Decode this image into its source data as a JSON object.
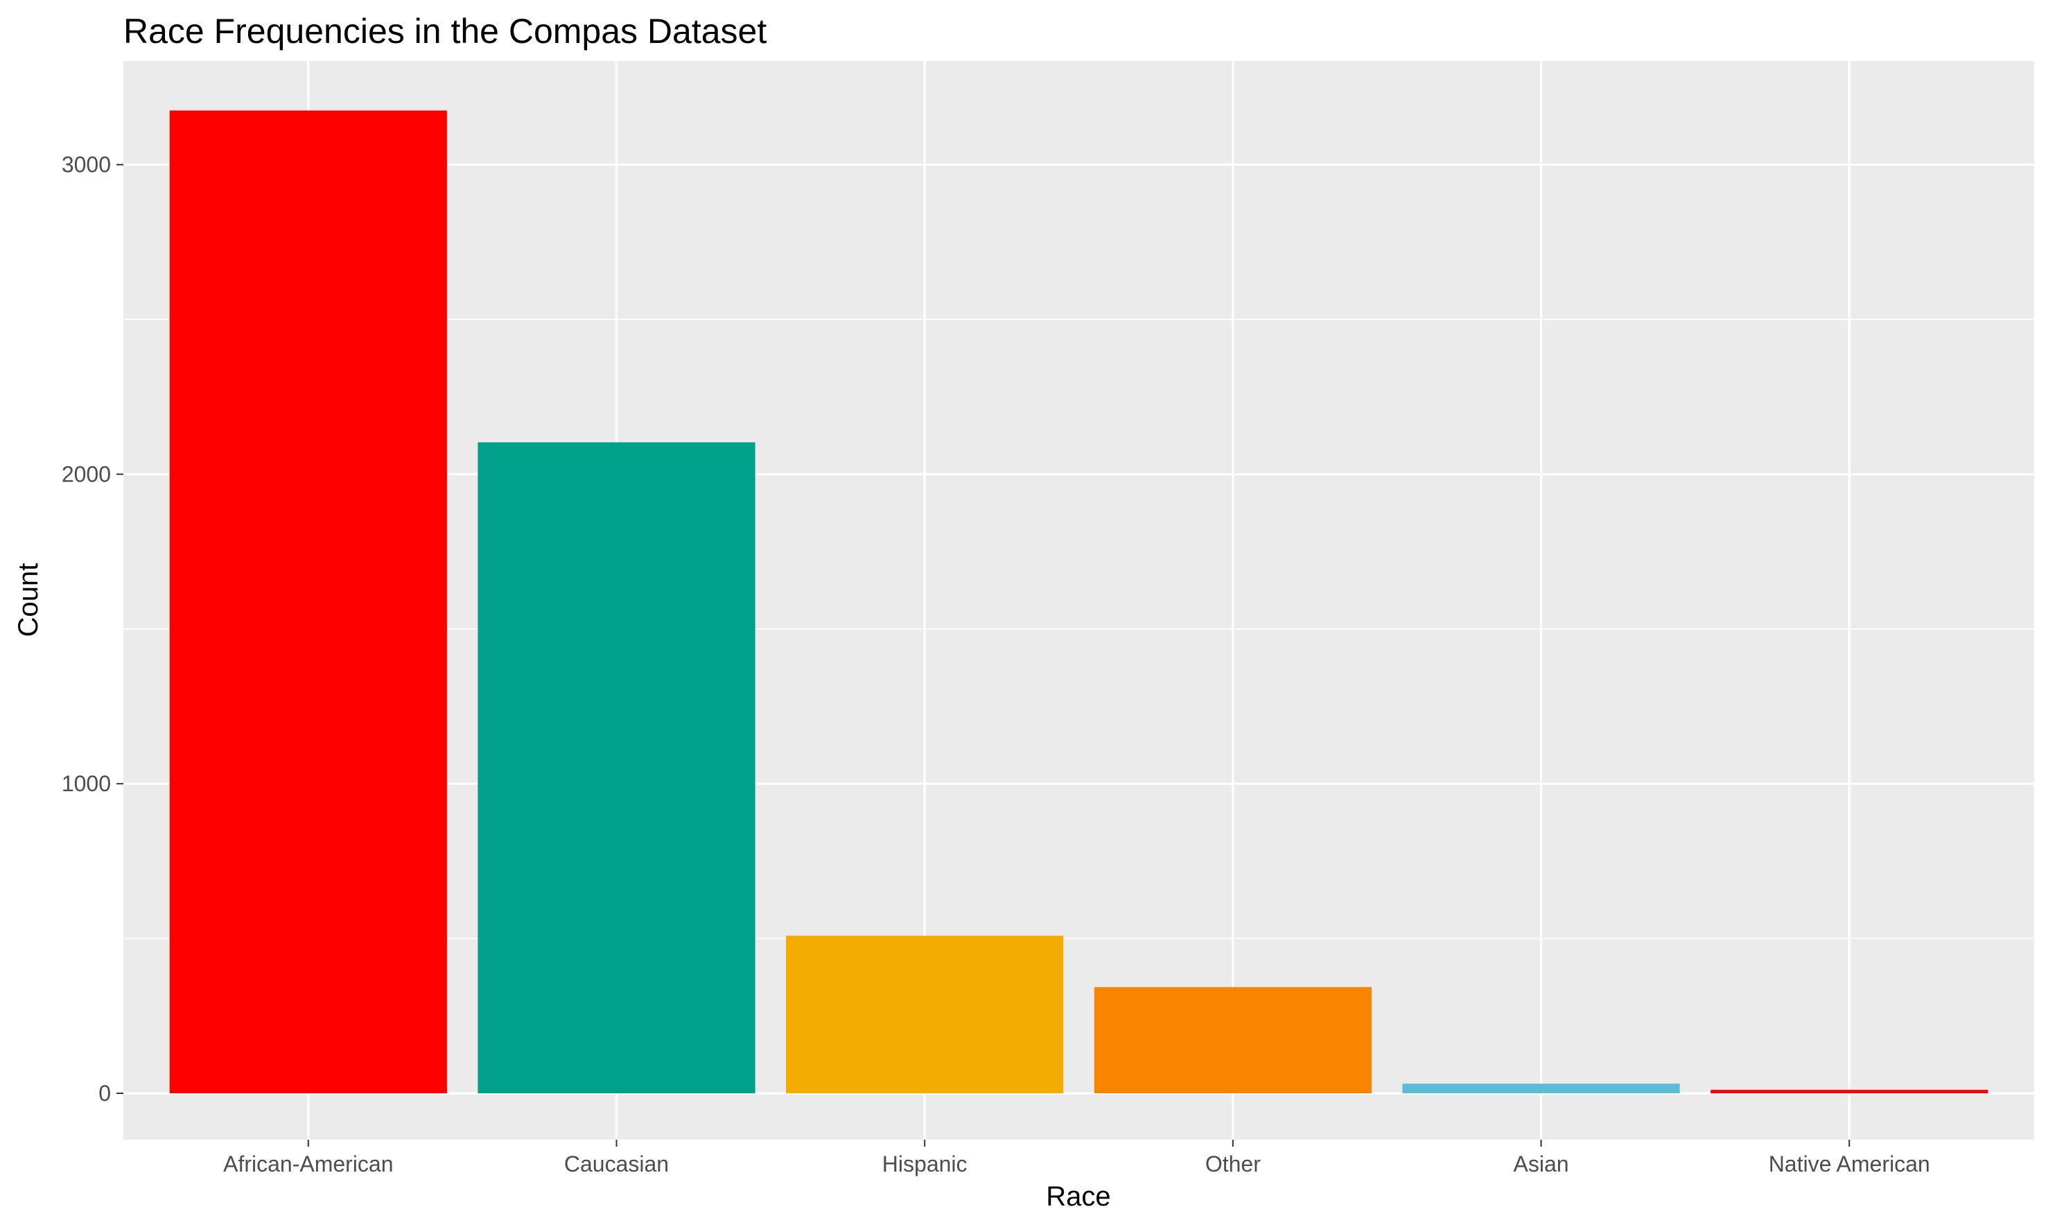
{
  "chart_data": {
    "type": "bar",
    "title": "Race Frequencies in the Compas Dataset",
    "xlabel": "Race",
    "ylabel": "Count",
    "categories": [
      "African-American",
      "Caucasian",
      "Hispanic",
      "Other",
      "Asian",
      "Native American"
    ],
    "values": [
      3175,
      2103,
      509,
      343,
      31,
      11
    ],
    "colors": [
      "#FF0000",
      "#00A08A",
      "#F2AD00",
      "#F98400",
      "#5BBCD6",
      "#FF0000"
    ],
    "ylim": [
      -150,
      3335
    ],
    "yticks": [
      0,
      1000,
      2000,
      3000
    ],
    "grid": true,
    "panel_background": "#EBEBEB",
    "grid_color": "#FFFFFF"
  }
}
